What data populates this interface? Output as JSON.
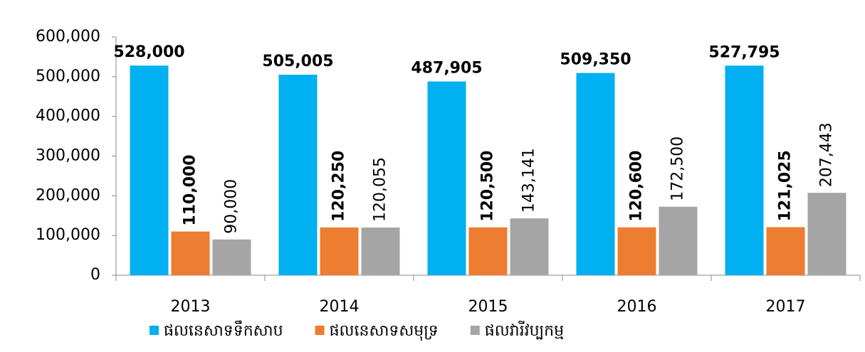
{
  "chart_data": {
    "type": "bar",
    "categories": [
      "2013",
      "2014",
      "2015",
      "2016",
      "2017"
    ],
    "series": [
      {
        "name": "ផលនេសាទទឹកសាប",
        "color": "#00b0f0",
        "values": [
          528000,
          505005,
          487905,
          509350,
          527795
        ],
        "value_labels": [
          "528,000",
          "505,005",
          "487,905",
          "509,350",
          "527,795"
        ]
      },
      {
        "name": "ផលនេសាទសមុទ្រ",
        "color": "#ed7d31",
        "values": [
          110000,
          120250,
          120500,
          120600,
          121025
        ],
        "value_labels": [
          "110,000",
          "120,250",
          "120,500",
          "120,600",
          "121,025"
        ]
      },
      {
        "name": "ផលវារីវប្បកម្ម",
        "color": "#a5a5a5",
        "values": [
          90000,
          120055,
          143141,
          172500,
          207443
        ],
        "value_labels": [
          "90,000",
          "120,055",
          "143,141",
          "172,500",
          "207,443"
        ]
      }
    ],
    "ylim": [
      0,
      600000
    ],
    "yticks": [
      0,
      {
        "value": 100000,
        "label": "100,000"
      },
      {
        "value": 200000,
        "label": "200,000"
      },
      {
        "value": 300000,
        "label": "300,000"
      },
      {
        "value": 400000,
        "label": "400,000"
      },
      {
        "value": 500000,
        "label": "500,000"
      },
      {
        "value": 600000,
        "label": "600,000"
      }
    ],
    "grid": false,
    "legend": "bottom"
  }
}
